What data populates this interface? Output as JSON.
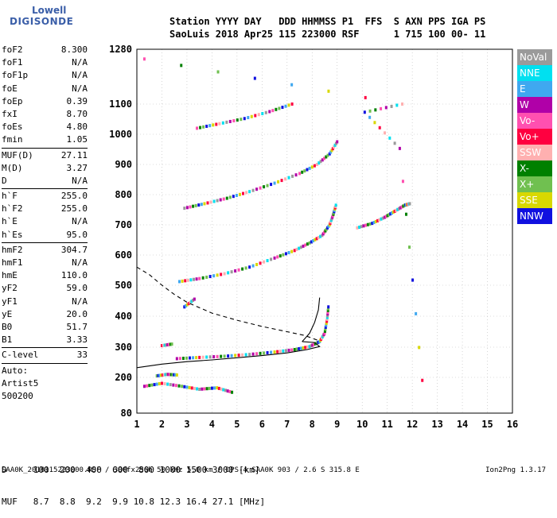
{
  "logo": {
    "line1": "Lowell",
    "line2": "DIGISONDE"
  },
  "header": {
    "line1": "Station YYYY DAY   DDD HHMMSS P1  FFS  S AXN PPS IGA PS",
    "line2": "SaoLuis 2018 Apr25 115 223000 RSF      1 715 100 00- 11"
  },
  "params": [
    {
      "label": "foF2",
      "value": "8.300"
    },
    {
      "label": "foF1",
      "value": "N/A"
    },
    {
      "label": "foF1p",
      "value": "N/A"
    },
    {
      "label": "foE",
      "value": "N/A"
    },
    {
      "label": "foEp",
      "value": "0.39"
    },
    {
      "label": "fxI",
      "value": "8.70"
    },
    {
      "label": "foEs",
      "value": "4.80"
    },
    {
      "label": "fmin",
      "value": "1.05"
    },
    {
      "label": "MUF(D)",
      "value": "27.11"
    },
    {
      "label": "M(D)",
      "value": "3.27"
    },
    {
      "label": "D",
      "value": "N/A"
    },
    {
      "label": "h`F",
      "value": "255.0"
    },
    {
      "label": "h`F2",
      "value": "255.0"
    },
    {
      "label": "h`E",
      "value": "N/A"
    },
    {
      "label": "h`Es",
      "value": "95.0"
    },
    {
      "label": "hmF2",
      "value": "304.7"
    },
    {
      "label": "hmF1",
      "value": "N/A"
    },
    {
      "label": "hmE",
      "value": "110.0"
    },
    {
      "label": "yF2",
      "value": "59.0"
    },
    {
      "label": "yF1",
      "value": "N/A"
    },
    {
      "label": "yE",
      "value": "20.0"
    },
    {
      "label": "B0",
      "value": "51.7"
    },
    {
      "label": "B1",
      "value": "3.33"
    },
    {
      "label": "C-level",
      "value": "33"
    }
  ],
  "auto": {
    "line1": "Auto:",
    "line2": "Artist5",
    "line3": "500200"
  },
  "legend": [
    {
      "label": "NoVal",
      "color": "#9a9a9a"
    },
    {
      "label": "NNE",
      "color": "#00e0f0"
    },
    {
      "label": "E",
      "color": "#3fa8f0"
    },
    {
      "label": "W",
      "color": "#b000a8"
    },
    {
      "label": "Vo-",
      "color": "#ff50b0"
    },
    {
      "label": "Vo+",
      "color": "#ff0040"
    },
    {
      "label": "SSW",
      "color": "#ffb0b0"
    },
    {
      "label": "X-",
      "color": "#008000"
    },
    {
      "label": "X+",
      "color": "#70c050"
    },
    {
      "label": "SSE",
      "color": "#d8d800"
    },
    {
      "label": "NNW",
      "color": "#1010e0"
    }
  ],
  "bottom": {
    "row1": "D     100  200  400  600  800 1000 1500 3000 [km]",
    "row2": "MUF   8.7  8.8  9.2  9.9 10.8 12.3 16.4 27.1 [MHz]"
  },
  "footer": {
    "left": "SAA0K_2018115223000.RSF / 300fx256h 50 kHz 5.0 km / DPS-4 SAA0K 903 / 2.6 S 315.8 E",
    "right": "Ion2Png 1.3.17"
  },
  "chart_data": {
    "type": "scatter",
    "title": "",
    "xlabel": "",
    "ylabel": "",
    "xlim": [
      1,
      16
    ],
    "ylim": [
      80,
      1280
    ],
    "x_ticks": [
      1,
      2,
      3,
      4,
      5,
      6,
      7,
      8,
      9,
      10,
      11,
      12,
      13,
      14,
      15,
      16
    ],
    "y_ticks": [
      80,
      200,
      300,
      400,
      500,
      600,
      700,
      800,
      900,
      1000,
      1100,
      1280
    ],
    "grid": "dotted",
    "traces": [
      {
        "name": "",
        "points": [
          [
            2.6,
            262
          ],
          [
            3.5,
            266
          ],
          [
            4.5,
            270
          ],
          [
            5.5,
            276
          ],
          [
            6.5,
            284
          ],
          [
            7.3,
            292
          ],
          [
            7.9,
            302
          ],
          [
            8.3,
            318
          ],
          [
            8.5,
            345
          ],
          [
            8.6,
            390
          ],
          [
            8.65,
            430
          ]
        ]
      },
      {
        "name": "",
        "points": [
          [
            2.7,
            512
          ],
          [
            3.5,
            522
          ],
          [
            4.5,
            538
          ],
          [
            5.5,
            560
          ],
          [
            6.5,
            590
          ],
          [
            7.3,
            615
          ],
          [
            7.9,
            640
          ],
          [
            8.4,
            665
          ],
          [
            8.7,
            700
          ],
          [
            8.85,
            735
          ],
          [
            8.95,
            765
          ]
        ]
      },
      {
        "name": "",
        "points": [
          [
            2.9,
            755
          ],
          [
            3.7,
            770
          ],
          [
            4.6,
            788
          ],
          [
            5.5,
            810
          ],
          [
            6.5,
            838
          ],
          [
            7.5,
            870
          ],
          [
            8.2,
            900
          ],
          [
            8.7,
            935
          ],
          [
            9.0,
            975
          ]
        ]
      },
      {
        "name": "",
        "points": [
          [
            3.4,
            1020
          ],
          [
            4.3,
            1035
          ],
          [
            5.3,
            1052
          ],
          [
            6.3,
            1075
          ],
          [
            7.2,
            1100
          ]
        ]
      },
      {
        "name": "",
        "points": [
          [
            9.8,
            690
          ],
          [
            10.4,
            705
          ],
          [
            10.9,
            725
          ],
          [
            11.3,
            745
          ],
          [
            11.7,
            765
          ],
          [
            11.9,
            770
          ]
        ]
      },
      {
        "name": "",
        "points": [
          [
            1.3,
            170
          ],
          [
            2.0,
            180
          ],
          [
            2.8,
            170
          ],
          [
            3.5,
            160
          ],
          [
            4.2,
            165
          ],
          [
            4.8,
            150
          ]
        ]
      },
      {
        "name": "",
        "points": [
          [
            1.8,
            205
          ],
          [
            2.2,
            210
          ],
          [
            2.6,
            208
          ]
        ]
      },
      {
        "name": "",
        "points": [
          [
            2.0,
            305
          ],
          [
            2.4,
            310
          ]
        ]
      },
      {
        "name": "",
        "points": [
          [
            2.9,
            430
          ],
          [
            3.3,
            455
          ]
        ]
      },
      {
        "name": "",
        "points": [
          [
            1.3,
            1248
          ],
          [
            11.6,
            1100
          ],
          [
            10.1,
            1073
          ],
          [
            11.5,
            953
          ],
          [
            12.4,
            190
          ]
        ]
      }
    ],
    "fitted_curves": [
      {
        "name": "",
        "style": "solid",
        "points": [
          [
            1.0,
            232
          ],
          [
            2.0,
            244
          ],
          [
            3.0,
            252
          ],
          [
            4.0,
            258
          ],
          [
            5.0,
            265
          ],
          [
            6.0,
            272
          ],
          [
            7.0,
            281
          ],
          [
            7.8,
            292
          ],
          [
            8.3,
            302
          ],
          [
            8.1,
            315
          ],
          [
            7.6,
            318
          ]
        ]
      },
      {
        "name": "",
        "style": "solid",
        "points": [
          [
            7.6,
            318
          ],
          [
            7.9,
            345
          ],
          [
            8.1,
            380
          ],
          [
            8.25,
            420
          ],
          [
            8.3,
            460
          ]
        ]
      },
      {
        "name": "",
        "style": "dashed",
        "points": [
          [
            1.0,
            560
          ],
          [
            1.5,
            535
          ],
          [
            2.0,
            500
          ],
          [
            2.5,
            470
          ],
          [
            3.0,
            445
          ],
          [
            4.0,
            410
          ],
          [
            5.0,
            387
          ],
          [
            6.0,
            367
          ],
          [
            7.0,
            350
          ],
          [
            7.7,
            338
          ],
          [
            8.3,
            320
          ]
        ]
      }
    ]
  }
}
